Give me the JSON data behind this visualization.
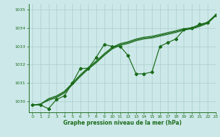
{
  "xlabel": "Graphe pression niveau de la mer (hPa)",
  "bg_color": "#cce8e8",
  "grid_color": "#aacccc",
  "line_color": "#1a6b1a",
  "marker_color": "#1a6b1a",
  "ylim": [
    1029.4,
    1035.3
  ],
  "yticks": [
    1030,
    1031,
    1032,
    1033,
    1034,
    1035
  ],
  "xlim": [
    -0.5,
    23.0
  ],
  "xticks": [
    0,
    1,
    2,
    3,
    4,
    5,
    6,
    7,
    8,
    9,
    10,
    11,
    12,
    13,
    14,
    15,
    16,
    17,
    18,
    19,
    20,
    21,
    22,
    23
  ],
  "series1": [
    1029.8,
    1029.8,
    1029.6,
    1030.1,
    1030.3,
    1031.0,
    1031.8,
    1031.8,
    1032.4,
    1033.1,
    1033.0,
    1033.0,
    1032.5,
    1031.5,
    1031.5,
    1031.6,
    1033.0,
    1033.2,
    1033.4,
    1033.9,
    1034.0,
    1034.2,
    1034.3,
    1034.7
  ],
  "series2": [
    1029.8,
    1029.85,
    1030.05,
    1030.2,
    1030.45,
    1030.9,
    1031.35,
    1031.75,
    1032.1,
    1032.5,
    1032.85,
    1033.05,
    1033.15,
    1033.3,
    1033.4,
    1033.45,
    1033.55,
    1033.65,
    1033.75,
    1033.88,
    1033.95,
    1034.08,
    1034.25,
    1034.65
  ],
  "series3": [
    1029.8,
    1029.85,
    1030.1,
    1030.25,
    1030.5,
    1030.95,
    1031.4,
    1031.8,
    1032.15,
    1032.55,
    1032.9,
    1033.1,
    1033.2,
    1033.35,
    1033.45,
    1033.5,
    1033.6,
    1033.7,
    1033.8,
    1033.92,
    1033.98,
    1034.12,
    1034.28,
    1034.68
  ],
  "series4": [
    1029.8,
    1029.85,
    1030.15,
    1030.3,
    1030.55,
    1031.0,
    1031.45,
    1031.85,
    1032.2,
    1032.6,
    1032.95,
    1033.15,
    1033.25,
    1033.4,
    1033.5,
    1033.55,
    1033.65,
    1033.75,
    1033.85,
    1033.96,
    1034.02,
    1034.16,
    1034.32,
    1034.72
  ]
}
